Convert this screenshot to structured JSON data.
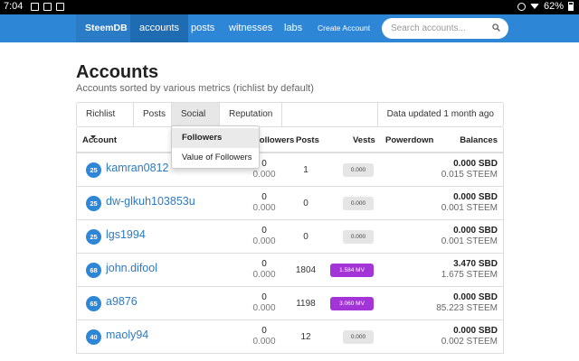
{
  "status_bar": {
    "time": "7:04",
    "battery": "62%"
  },
  "nav": {
    "brand": "SteemDB",
    "items": [
      "accounts",
      "posts",
      "witnesses",
      "labs",
      "Create Account"
    ],
    "active": "accounts",
    "search_placeholder": "Search accounts..."
  },
  "header": {
    "title": "Accounts",
    "subtitle": "Accounts sorted by various metrics (richlist by default)"
  },
  "tabs": {
    "richlist": "Richlist",
    "posts": "Posts",
    "social": "Social",
    "reputation": "Reputation",
    "updated": "Data updated 1 month ago"
  },
  "dropdown": {
    "items": [
      "Followers",
      "Value of Followers"
    ],
    "active": "Followers"
  },
  "table": {
    "headers": {
      "account": "Account",
      "followers": "Followers",
      "posts": "Posts",
      "vests": "Vests",
      "powerdown": "Powerdown",
      "balances": "Balances"
    },
    "rows": [
      {
        "rep": "25",
        "account": "kamran0812",
        "followers": "0",
        "followers_value": "0.000",
        "posts": "1",
        "vests": "0.000",
        "vests_mv": false,
        "sbd": "0.000 SBD",
        "steem": "0.015 STEEM"
      },
      {
        "rep": "25",
        "account": "dw-glkuh103853u",
        "followers": "0",
        "followers_value": "0.000",
        "posts": "0",
        "vests": "0.000",
        "vests_mv": false,
        "sbd": "0.000 SBD",
        "steem": "0.001 STEEM"
      },
      {
        "rep": "25",
        "account": "lgs1994",
        "followers": "0",
        "followers_value": "0.000",
        "posts": "0",
        "vests": "0.000",
        "vests_mv": false,
        "sbd": "0.000 SBD",
        "steem": "0.001 STEEM"
      },
      {
        "rep": "68",
        "account": "john.difool",
        "followers": "0",
        "followers_value": "0.000",
        "posts": "1804",
        "vests": "1.584 MV",
        "vests_mv": true,
        "sbd": "3.470 SBD",
        "steem": "1.675 STEEM"
      },
      {
        "rep": "65",
        "account": "a9876",
        "followers": "0",
        "followers_value": "0.000",
        "posts": "1198",
        "vests": "3.060 MV",
        "vests_mv": true,
        "sbd": "0.000 SBD",
        "steem": "85.223 STEEM"
      },
      {
        "rep": "40",
        "account": "maoly94",
        "followers": "0",
        "followers_value": "0.000",
        "posts": "12",
        "vests": "0.000",
        "vests_mv": false,
        "sbd": "0.000 SBD",
        "steem": "0.002 STEEM"
      }
    ]
  },
  "colors": {
    "navbar": "#2e86d6",
    "link": "#2e79c4",
    "mv_badge": "#a334d8"
  }
}
